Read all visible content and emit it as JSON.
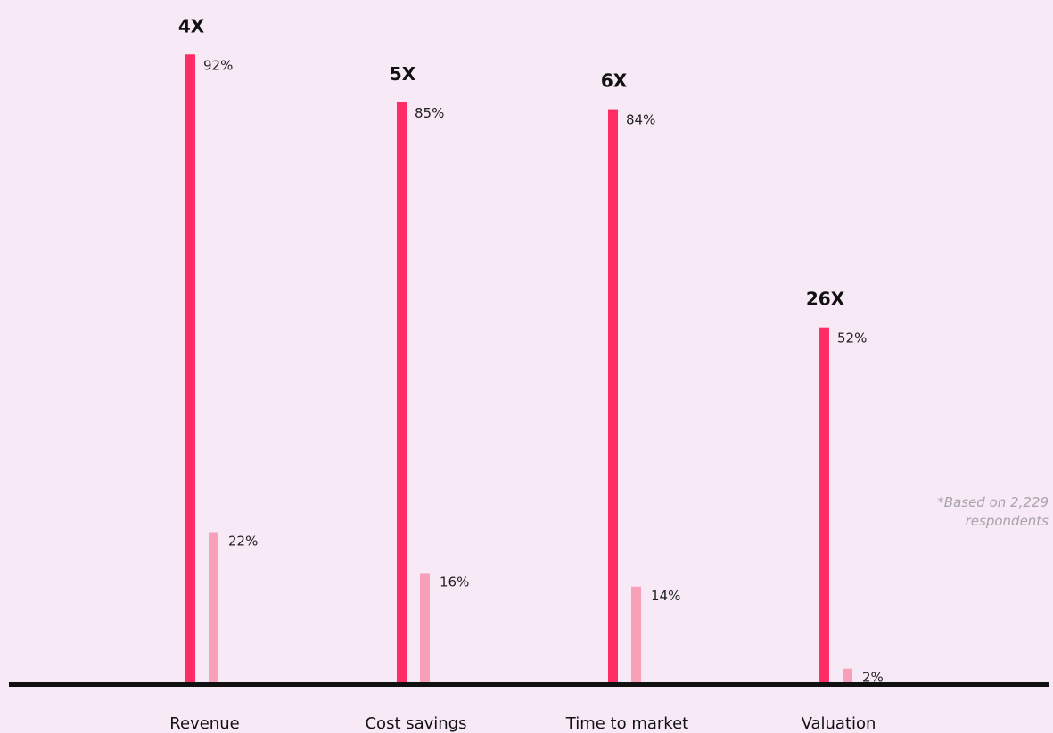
{
  "colors": {
    "background": "#f7e9f5",
    "series_primary": "#ff2d63",
    "series_secondary": "#f8a0b8",
    "baseline": "#111111"
  },
  "chart_data": {
    "type": "bar",
    "categories": [
      "Revenue",
      "Cost savings",
      "Time to market",
      "Valuation"
    ],
    "series": [
      {
        "values": [
          92,
          85,
          84,
          52
        ],
        "labels": [
          "92%",
          "85%",
          "84%",
          "52%"
        ]
      },
      {
        "values": [
          22,
          16,
          14,
          2
        ],
        "labels": [
          "22%",
          "16%",
          "14%",
          "2%"
        ]
      }
    ],
    "multipliers": [
      "4X",
      "5X",
      "6X",
      "26X"
    ],
    "ylim": [
      0,
      100
    ],
    "grid": false,
    "legend": "none"
  },
  "footnote": {
    "line1": "*Based on 2,229",
    "line2": "respondents"
  }
}
